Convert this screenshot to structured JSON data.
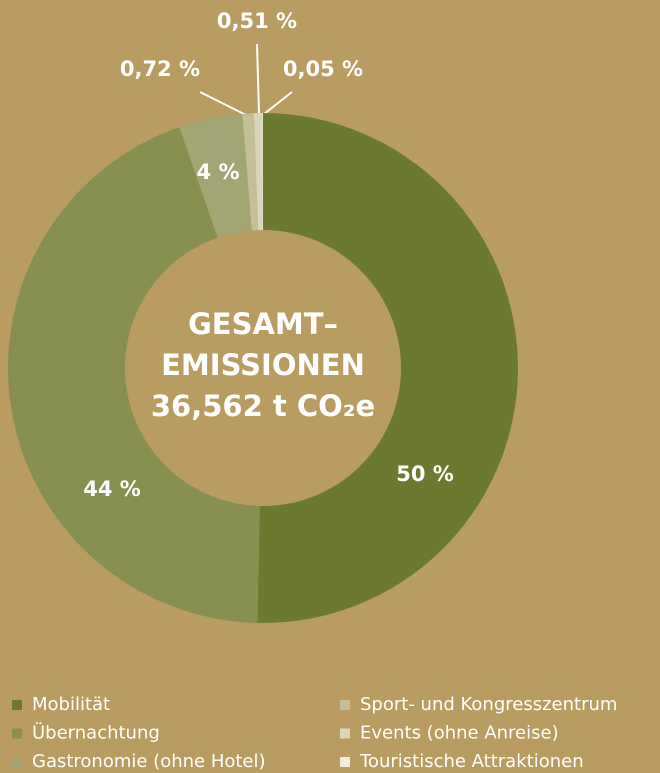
{
  "chart_data": {
    "type": "donut",
    "center_text": [
      "GESAMT–",
      "EMISSIONEN",
      "36,562 t CO₂e"
    ],
    "categories": [
      "Mobilität",
      "Übernachtung",
      "Gastronomie (ohne Hotel)",
      "Sport- und Kongresszentrum",
      "Events (ohne Anreise)",
      "Touristische Attraktionen"
    ],
    "values": [
      50,
      44,
      4,
      0.72,
      0.51,
      0.05
    ],
    "value_labels": [
      "50 %",
      "44 %",
      "4 %",
      "0,72 %",
      "0,51 %",
      "0,05 %"
    ],
    "colors": [
      "#6b7a30",
      "#879050",
      "#a4a574",
      "#c4bf98",
      "#dad6bc",
      "#efece0"
    ]
  }
}
